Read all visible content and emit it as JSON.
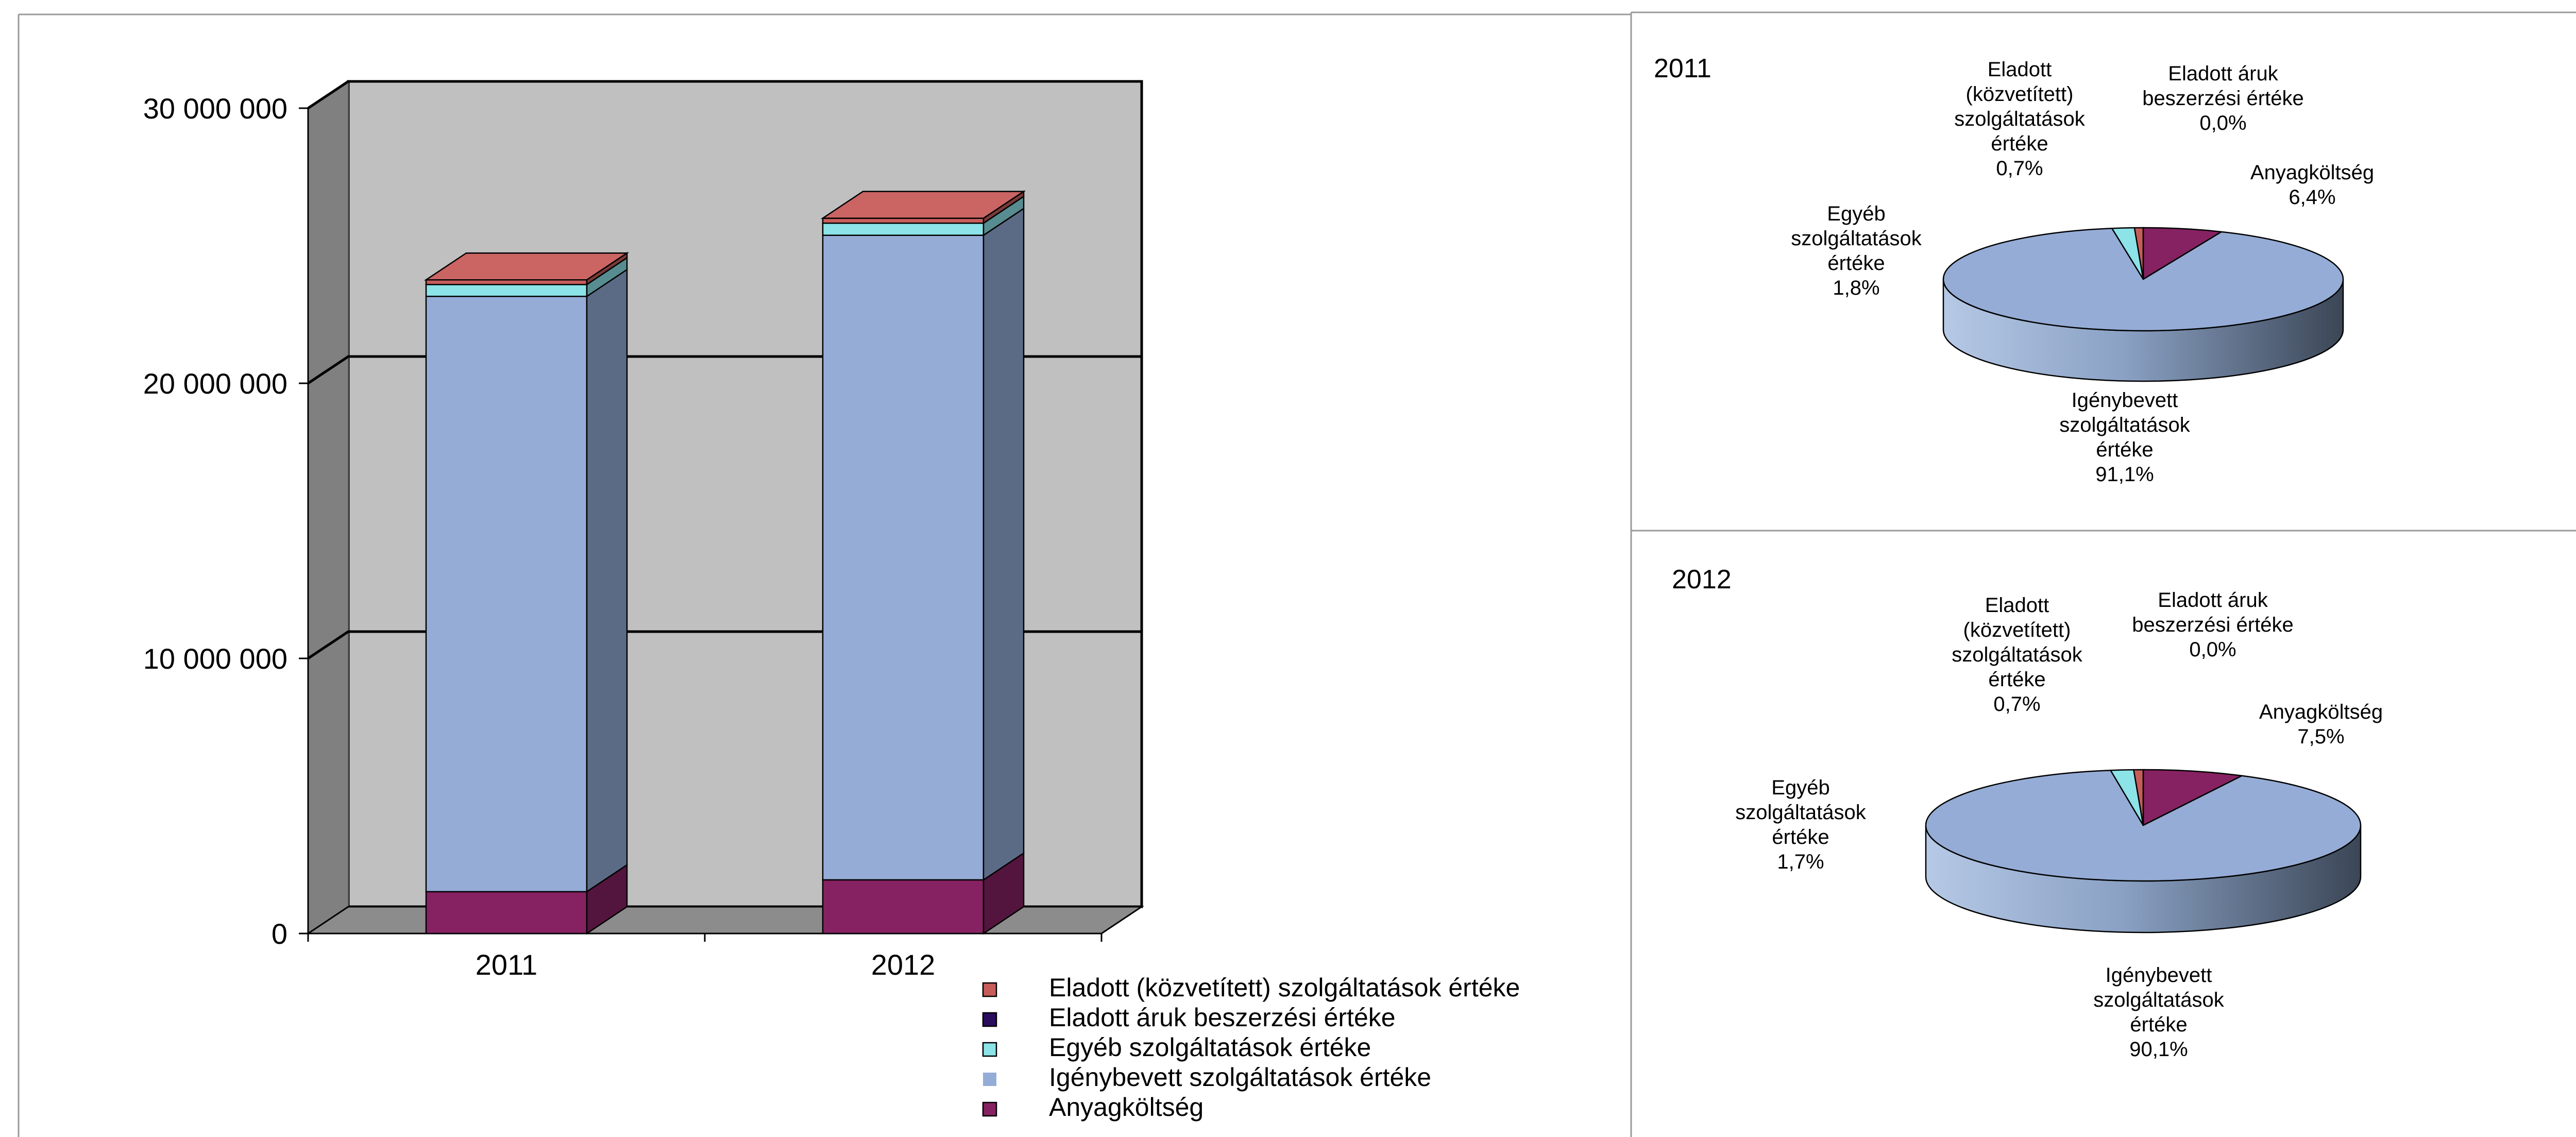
{
  "colors": {
    "anyag": "#862262",
    "igeny": "#95acd6",
    "egyeb": "#8ce3e8",
    "aruk": "#2a0e5e",
    "kozv": "#c75d5b",
    "wall": "#c0c0c0",
    "side_wall": "#808080",
    "floor": "#8c8c8c"
  },
  "bar_chart": {
    "chart_data": {
      "type": "bar",
      "stacked": true,
      "three_d": true,
      "categories": [
        "2011",
        "2012"
      ],
      "series": [
        {
          "name": "Anyagköltség",
          "key": "anyag",
          "values": [
            1520000,
            1950000
          ]
        },
        {
          "name": "Igénybevett szolgáltatások értéke",
          "key": "igeny",
          "values": [
            21640000,
            23430000
          ]
        },
        {
          "name": "Egyéb szolgáltatások értéke",
          "key": "egyeb",
          "values": [
            430000,
            440000
          ]
        },
        {
          "name": "Eladott áruk beszerzési értéke",
          "key": "aruk",
          "values": [
            0,
            0
          ]
        },
        {
          "name": "Eladott (közvetített) szolgáltatások értéke",
          "key": "kozv",
          "values": [
            170000,
            180000
          ]
        }
      ],
      "ylim": [
        0,
        30000000
      ],
      "yticks": [
        0,
        10000000,
        20000000,
        30000000
      ],
      "ytick_labels": [
        "0",
        "10 000 000",
        "20 000 000",
        "30 000 000"
      ],
      "grid": true,
      "legend_position": "bottom-right"
    },
    "legend": [
      {
        "label": "Eladott (közvetített) szolgáltatások értéke",
        "key": "kozv"
      },
      {
        "label": "Eladott áruk beszerzési értéke",
        "key": "aruk"
      },
      {
        "label": "Egyéb szolgáltatások értéke",
        "key": "egyeb"
      },
      {
        "label": "Igénybevett szolgáltatások értéke",
        "key": "igeny"
      },
      {
        "label": "Anyagköltség",
        "key": "anyag"
      }
    ]
  },
  "pie_charts": [
    {
      "title": "2011",
      "chart_data": {
        "type": "pie",
        "three_d": true,
        "slices": [
          {
            "name": "Anyagköltség",
            "key": "anyag",
            "value": 6.4,
            "label_lines": [
              "Anyagköltség",
              "6,4%"
            ]
          },
          {
            "name": "Igénybevett szolgáltatások értéke",
            "key": "igeny",
            "value": 91.1,
            "label_lines": [
              "Igénybevett",
              "szolgáltatások",
              "értéke",
              "91,1%"
            ]
          },
          {
            "name": "Egyéb szolgáltatások értéke",
            "key": "egyeb",
            "value": 1.8,
            "label_lines": [
              "Egyéb",
              "szolgáltatások",
              "értéke",
              "1,8%"
            ]
          },
          {
            "name": "Eladott (közvetített) szolgáltatások értéke",
            "key": "kozv",
            "value": 0.7,
            "label_lines": [
              "Eladott",
              "(közvetített)",
              "szolgáltatások",
              "értéke",
              "0,7%"
            ]
          },
          {
            "name": "Eladott áruk beszerzési értéke",
            "key": "aruk",
            "value": 0.0,
            "label_lines": [
              "Eladott áruk",
              "beszerzési értéke",
              "0,0%"
            ]
          }
        ]
      }
    },
    {
      "title": "2012",
      "chart_data": {
        "type": "pie",
        "three_d": true,
        "slices": [
          {
            "name": "Anyagköltség",
            "key": "anyag",
            "value": 7.5,
            "label_lines": [
              "Anyagköltség",
              "7,5%"
            ]
          },
          {
            "name": "Igénybevett szolgáltatások értéke",
            "key": "igeny",
            "value": 90.1,
            "label_lines": [
              "Igénybevett",
              "szolgáltatások",
              "értéke",
              "90,1%"
            ]
          },
          {
            "name": "Egyéb szolgáltatások értéke",
            "key": "egyeb",
            "value": 1.7,
            "label_lines": [
              "Egyéb",
              "szolgáltatások",
              "értéke",
              "1,7%"
            ]
          },
          {
            "name": "Eladott (közvetített) szolgáltatások értéke",
            "key": "kozv",
            "value": 0.7,
            "label_lines": [
              "Eladott",
              "(közvetített)",
              "szolgáltatások",
              "értéke",
              "0,7%"
            ]
          },
          {
            "name": "Eladott áruk beszerzési értéke",
            "key": "aruk",
            "value": 0.0,
            "label_lines": [
              "Eladott áruk",
              "beszerzési értéke",
              "0,0%"
            ]
          }
        ]
      }
    }
  ]
}
